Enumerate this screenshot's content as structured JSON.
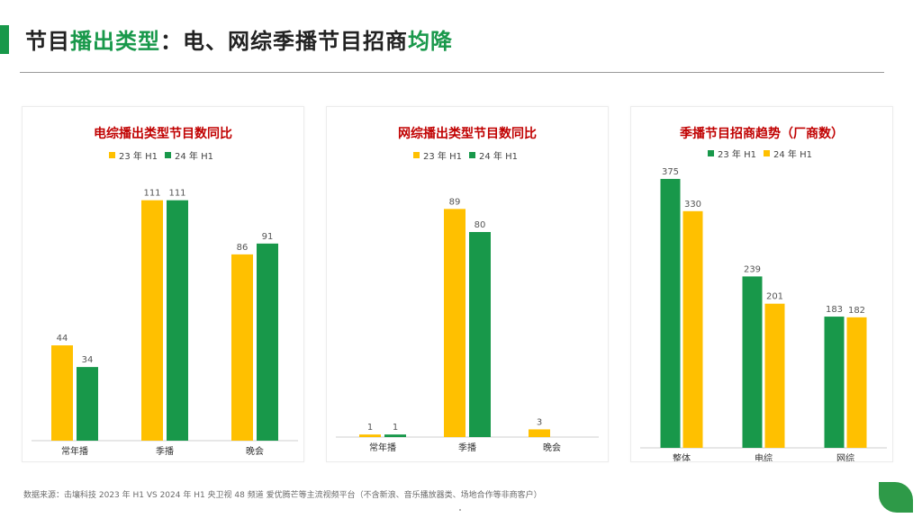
{
  "header": {
    "title_parts": [
      {
        "text": "节目",
        "green": false
      },
      {
        "text": "播出类型",
        "green": true
      },
      {
        "text": "：电、网综季播节目招商",
        "green": false
      },
      {
        "text": "均降",
        "green": true
      }
    ]
  },
  "source_note": "数据来源：击壤科技 2023 年 H1 VS 2024 年 H1    央卫视 48 频道 爱优腾芒等主流视频平台（不含新浪、音乐播放器类、场地合作等非商客户）",
  "colors": {
    "green": "#18984a",
    "yellow": "#ffc000",
    "title_red": "#c00000"
  },
  "chart_data": [
    {
      "type": "bar",
      "title": "电综播出类型节目数同比",
      "categories": [
        "常年播",
        "季播",
        "晚会"
      ],
      "series": [
        {
          "name": "23 年 H1",
          "color": "#ffc000",
          "values": [
            44,
            111,
            86
          ]
        },
        {
          "name": "24 年 H1",
          "color": "#18984a",
          "values": [
            34,
            111,
            91
          ]
        }
      ],
      "ylim": [
        0,
        120
      ],
      "legend": "top-center",
      "grid": false
    },
    {
      "type": "bar",
      "title": "网综播出类型节目数同比",
      "categories": [
        "常年播",
        "季播",
        "晚会"
      ],
      "series": [
        {
          "name": "23 年 H1",
          "color": "#ffc000",
          "values": [
            1,
            89,
            3
          ]
        },
        {
          "name": "24 年 H1",
          "color": "#18984a",
          "values": [
            1,
            80,
            0
          ]
        }
      ],
      "labels_shown": [
        [
          1,
          89,
          3
        ],
        [
          1,
          80,
          null
        ]
      ],
      "ylim": [
        0,
        100
      ],
      "legend": "top-center",
      "grid": false
    },
    {
      "type": "bar",
      "title": "季播节目招商趋势（厂商数）",
      "categories": [
        "整体",
        "电综",
        "网综"
      ],
      "series": [
        {
          "name": "23 年 H1",
          "color": "#18984a",
          "values": [
            375,
            239,
            183
          ]
        },
        {
          "name": "24 年 H1",
          "color": "#ffc000",
          "values": [
            330,
            201,
            182
          ]
        }
      ],
      "ylim": [
        0,
        400
      ],
      "legend": "top-center",
      "grid": false
    }
  ]
}
